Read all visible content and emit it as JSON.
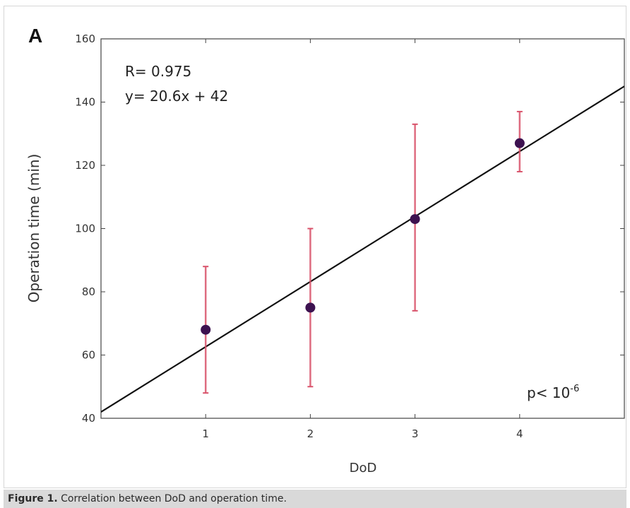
{
  "caption": {
    "label": "Figure 1.",
    "text": " Correlation between DoD and operation time."
  },
  "chart_data": {
    "type": "scatter",
    "panel_label": "A",
    "title": "",
    "xlabel": "DoD",
    "ylabel": "Operation time (min)",
    "xlim": [
      0,
      5
    ],
    "ylim": [
      40,
      160
    ],
    "xticks": [
      1,
      2,
      3,
      4
    ],
    "yticks": [
      40,
      60,
      80,
      100,
      120,
      140,
      160
    ],
    "grid": false,
    "points": [
      {
        "x": 1,
        "y": 68,
        "err_low": 48,
        "err_high": 88
      },
      {
        "x": 2,
        "y": 75,
        "err_low": 50,
        "err_high": 100
      },
      {
        "x": 3,
        "y": 103,
        "err_low": 74,
        "err_high": 133
      },
      {
        "x": 4,
        "y": 127,
        "err_low": 118,
        "err_high": 137
      }
    ],
    "fit_line": {
      "slope": 20.6,
      "intercept": 42
    },
    "annotations": {
      "r_text": "R= 0.975",
      "eq_text": "y= 20.6x + 42",
      "p_text": "p< 10",
      "p_exponent": "-6"
    },
    "colors": {
      "marker": "#3d1250",
      "error_bar": "#d9536b",
      "fit_line": "#111111",
      "axes": "#444444"
    }
  }
}
